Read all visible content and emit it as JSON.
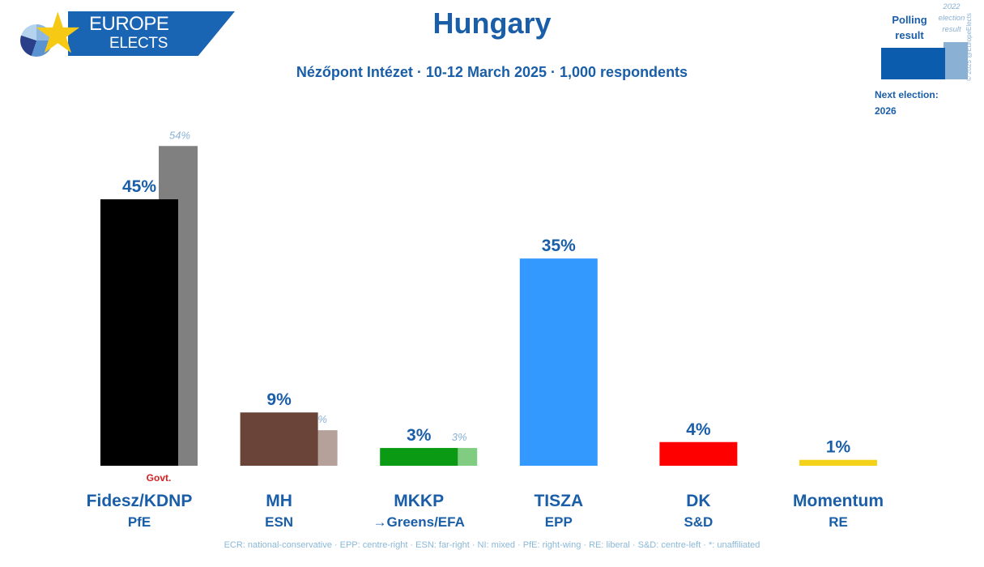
{
  "branding": {
    "logo_line1": "EUROPE",
    "logo_line2": "ELECTS",
    "copyright": "© 2025 @EuropeElects"
  },
  "legend": {
    "polling_label": "Polling result",
    "previous_label": "2022 election result",
    "next_election_label": "Next election:",
    "next_election_year": "2026",
    "colors": {
      "polling": "#0b5cad",
      "previous": "#8ab0d4"
    }
  },
  "chart_data": {
    "type": "bar",
    "title": "Hungary",
    "subtitle": "Nézőpont Intézet · 10-12 March 2025 · 1,000 respondents",
    "xlabel": "",
    "ylabel": "",
    "ylim": [
      0,
      55
    ],
    "grid": false,
    "categories": [
      "Fidesz/KDNP",
      "MH",
      "MKKP",
      "TISZA",
      "DK",
      "Momentum"
    ],
    "groups": [
      "PfE",
      "ESN",
      "→Greens/EFA",
      "EPP",
      "S&D",
      "RE"
    ],
    "annotations": [
      {
        "category": "Fidesz/KDNP",
        "text": "Govt."
      }
    ],
    "series": [
      {
        "name": "Polling result",
        "values": [
          45,
          9,
          3,
          35,
          4,
          1
        ],
        "labels": [
          "45%",
          "9%",
          "3%",
          "35%",
          "4%",
          "1%"
        ],
        "colors": [
          "#000000",
          "#6b4439",
          "#0a9a14",
          "#3399ff",
          "#ff0000",
          "#f5d21a"
        ]
      },
      {
        "name": "2022 election result",
        "values": [
          54,
          6,
          3,
          null,
          null,
          null
        ],
        "labels": [
          "54%",
          "6%",
          "3%",
          null,
          null,
          null
        ],
        "colors": [
          "#808080",
          "#b5a09a",
          "#80cc80",
          null,
          null,
          null
        ]
      }
    ],
    "footnote": "ECR: national-conservative · EPP: centre-right · ESN: far-right · NI: mixed · PfE: right-wing · RE: liberal · S&D: centre-left · *: unaffiliated"
  }
}
